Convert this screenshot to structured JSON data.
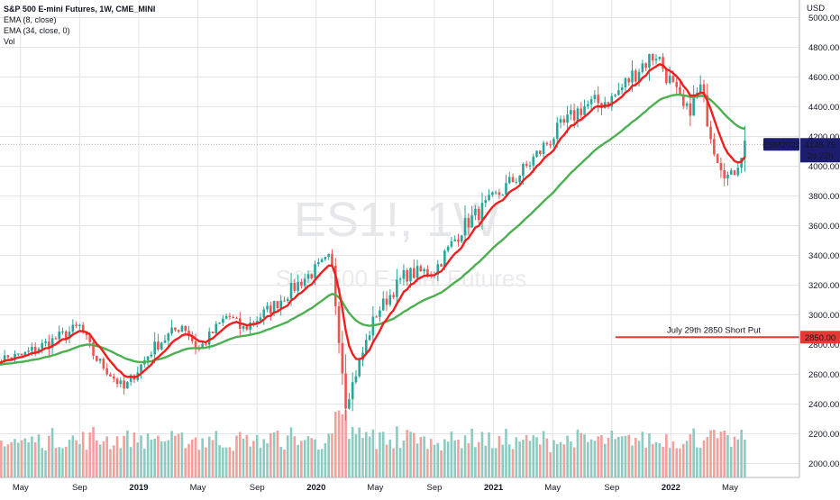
{
  "header": {
    "symbol_title": "S&P 500 E-mini Futures, 1W, CME_MINI",
    "ema1_label": "EMA (8, close)",
    "ema2_label": "EMA (34, close, 0)",
    "vol_label": "Vol"
  },
  "watermark": {
    "line1": "ES1!, 1W",
    "line2": "S&P 500 E-mini Futures"
  },
  "price_axis": {
    "currency": "USD",
    "ticks": [
      "5000.00",
      "4800.00",
      "4600.00",
      "4400.00",
      "4200.00",
      "4000.00",
      "3800.00",
      "3600.00",
      "3400.00",
      "3200.00",
      "3000.00",
      "2800.00",
      "2600.00",
      "2400.00",
      "2200.00",
      "2000.00"
    ]
  },
  "time_axis": {
    "labels": [
      "May",
      "Sep",
      "2019",
      "May",
      "Sep",
      "2020",
      "May",
      "Sep",
      "2021",
      "May",
      "Sep",
      "2022",
      "May"
    ]
  },
  "price_badges": {
    "contract": "ESM2022",
    "last_price": "4146.75",
    "countdown": "2d 22h",
    "hline_price": "2850.00"
  },
  "annotation": {
    "text": "July 29th 2850 Short Put"
  },
  "colors": {
    "up": "#26a69a",
    "down": "#ef5350",
    "ema8": "#f21e1e",
    "ema34": "#4caf50",
    "hline": "#e53935",
    "badge_bg": "#1c1d6e",
    "vol_up": "#8ccbc1",
    "vol_down": "#f1a09b"
  },
  "chart_data": {
    "type": "candlestick",
    "title": "S&P 500 E-mini Futures, 1W, CME_MINI",
    "timeframe": "weekly",
    "x_start": "2018-03",
    "x_end": "2022-06",
    "ylim": [
      1930,
      5080
    ],
    "yticks": [
      2000,
      2200,
      2400,
      2600,
      2800,
      3000,
      3200,
      3400,
      3600,
      3800,
      4000,
      4200,
      4400,
      4600,
      4800,
      5000
    ],
    "close_path_monthly": [
      {
        "t": "2018-03",
        "close": 2700
      },
      {
        "t": "2018-05",
        "close": 2720
      },
      {
        "t": "2018-07",
        "close": 2820
      },
      {
        "t": "2018-09",
        "close": 2920
      },
      {
        "t": "2018-10",
        "close": 2720
      },
      {
        "t": "2018-12",
        "close": 2500
      },
      {
        "t": "2019-02",
        "close": 2780
      },
      {
        "t": "2019-04",
        "close": 2940
      },
      {
        "t": "2019-05",
        "close": 2760
      },
      {
        "t": "2019-07",
        "close": 3000
      },
      {
        "t": "2019-08",
        "close": 2900
      },
      {
        "t": "2019-10",
        "close": 3050
      },
      {
        "t": "2019-12",
        "close": 3230
      },
      {
        "t": "2020-02",
        "close": 3380
      },
      {
        "t": "2020-03",
        "close": 2400
      },
      {
        "t": "2020-05",
        "close": 3000
      },
      {
        "t": "2020-07",
        "close": 3270
      },
      {
        "t": "2020-09",
        "close": 3300
      },
      {
        "t": "2020-11",
        "close": 3600
      },
      {
        "t": "2021-01",
        "close": 3780
      },
      {
        "t": "2021-03",
        "close": 3970
      },
      {
        "t": "2021-05",
        "close": 4200
      },
      {
        "t": "2021-07",
        "close": 4400
      },
      {
        "t": "2021-09",
        "close": 4450
      },
      {
        "t": "2021-11",
        "close": 4680
      },
      {
        "t": "2021-12",
        "close": 4760
      },
      {
        "t": "2022-02",
        "close": 4350
      },
      {
        "t": "2022-03",
        "close": 4520
      },
      {
        "t": "2022-04",
        "close": 4100
      },
      {
        "t": "2022-05",
        "close": 3900
      },
      {
        "t": "2022-06",
        "close": 4150
      }
    ],
    "ema8": "EMA (8, close)",
    "ema34": "EMA (34, close, 0)",
    "horizontal_line": {
      "price": 2850,
      "label": "July 29th 2850 Short Put"
    },
    "last_price": 4146.75,
    "volume_pane": {
      "label": "Vol",
      "range_note": "relative bar heights"
    },
    "grid": true
  }
}
